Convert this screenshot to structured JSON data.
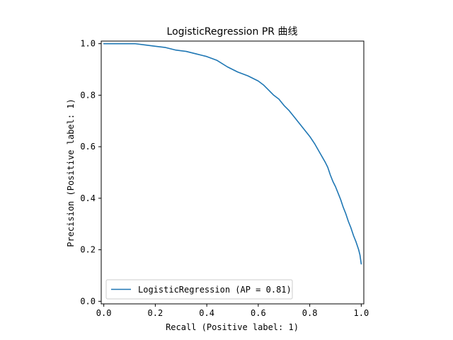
{
  "chart_data": {
    "type": "line",
    "title": "LogisticRegression PR 曲线",
    "xlabel": "Recall (Positive label: 1)",
    "ylabel": "Precision (Positive label: 1)",
    "xlim": [
      -0.01,
      1.01
    ],
    "ylim": [
      -0.01,
      1.01
    ],
    "xticks": [
      0.0,
      0.2,
      0.4,
      0.6,
      0.8,
      1.0
    ],
    "yticks": [
      0.0,
      0.2,
      0.4,
      0.6,
      0.8,
      1.0
    ],
    "xtick_labels": [
      "0.0",
      "0.2",
      "0.4",
      "0.6",
      "0.8",
      "1.0"
    ],
    "ytick_labels": [
      "0.0",
      "0.2",
      "0.4",
      "0.6",
      "0.8",
      "1.0"
    ],
    "grid": false,
    "legend_position": "lower-left",
    "series": [
      {
        "name": "LogisticRegression (AP = 0.81)",
        "color": "#1f77b4",
        "x": [
          0.0,
          0.02,
          0.06,
          0.12,
          0.16,
          0.2,
          0.24,
          0.28,
          0.32,
          0.36,
          0.38,
          0.4,
          0.44,
          0.48,
          0.52,
          0.56,
          0.6,
          0.62,
          0.64,
          0.66,
          0.68,
          0.7,
          0.72,
          0.74,
          0.76,
          0.78,
          0.8,
          0.82,
          0.84,
          0.86,
          0.87,
          0.88,
          0.89,
          0.9,
          0.91,
          0.92,
          0.93,
          0.94,
          0.95,
          0.96,
          0.97,
          0.98,
          0.99,
          0.995,
          1.0
        ],
        "y": [
          1.0,
          1.0,
          1.0,
          1.0,
          0.995,
          0.99,
          0.985,
          0.975,
          0.97,
          0.96,
          0.955,
          0.95,
          0.935,
          0.91,
          0.89,
          0.875,
          0.855,
          0.84,
          0.82,
          0.8,
          0.785,
          0.76,
          0.74,
          0.715,
          0.69,
          0.665,
          0.64,
          0.61,
          0.575,
          0.54,
          0.52,
          0.49,
          0.465,
          0.445,
          0.42,
          0.395,
          0.365,
          0.34,
          0.31,
          0.285,
          0.255,
          0.23,
          0.2,
          0.18,
          0.145
        ]
      }
    ]
  }
}
